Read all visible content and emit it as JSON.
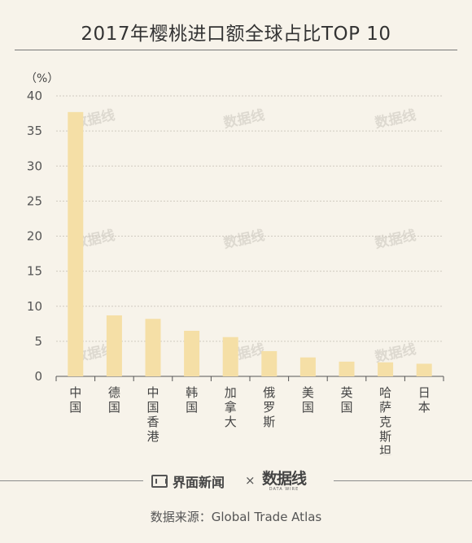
{
  "title": "2017年樱桃进口额全球占比TOP 10",
  "unit_label": "（%）",
  "chart_data": {
    "type": "bar",
    "title": "2017年樱桃进口额全球占比TOP 10",
    "ylabel": "（%）",
    "xlabel": "",
    "categories": [
      "中国",
      "德国",
      "中国香港",
      "韩国",
      "加拿大",
      "俄罗斯",
      "美国",
      "英国",
      "哈萨克斯坦",
      "日本"
    ],
    "values": [
      37.7,
      8.7,
      8.2,
      6.5,
      5.6,
      3.6,
      2.7,
      2.1,
      2.0,
      1.8
    ],
    "ylim": [
      0,
      40
    ],
    "yticks": [
      0,
      5,
      10,
      15,
      20,
      25,
      30,
      35,
      40
    ],
    "grid": true,
    "bar_color": "#f5dfa6"
  },
  "footer": {
    "brand_left": "界面新闻",
    "separator": "×",
    "brand_right": "数据线",
    "brand_right_sub": "DATA WIRE",
    "source": "数据来源：Global Trade Atlas"
  },
  "watermark": "数据线"
}
